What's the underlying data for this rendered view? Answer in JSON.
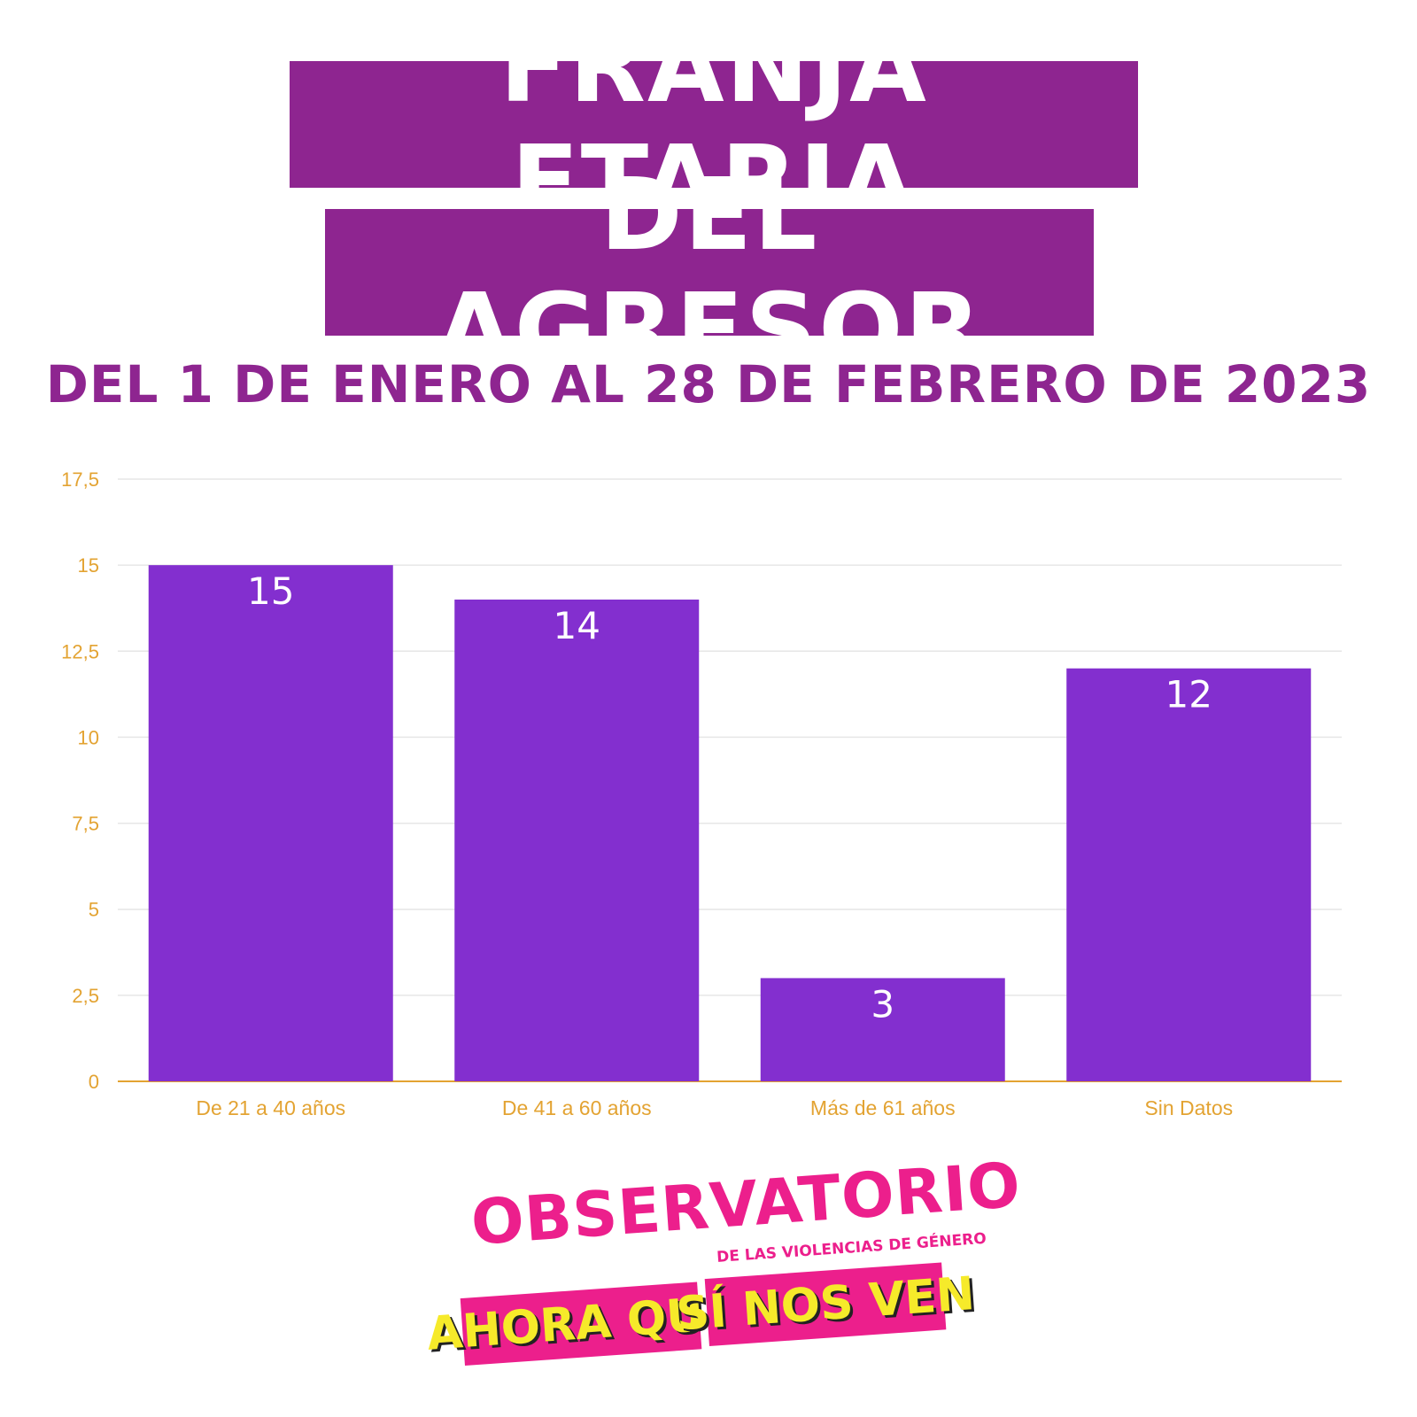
{
  "header": {
    "title_line1": "FRANJA ETARIA",
    "title_line2": "DEL AGRESOR",
    "subtitle": "DEL 1 DE ENERO AL 28 DE FEBRERO DE 2023"
  },
  "colors": {
    "title_bg": "#8e2590",
    "bar": "#832fcf",
    "axis_text": "#e3a332",
    "brand_pink": "#ec1f8c",
    "brand_yellow": "#f6ea2a"
  },
  "chart_data": {
    "type": "bar",
    "categories": [
      "De 21 a 40 años",
      "De 41 a 60 años",
      "Más de 61 años",
      "Sin Datos"
    ],
    "values": [
      15,
      14,
      3,
      12
    ],
    "data_labels": [
      "15",
      "14",
      "3",
      "12"
    ],
    "ylim": [
      0,
      17.5
    ],
    "yticks": [
      0,
      2.5,
      5,
      7.5,
      10,
      12.5,
      15,
      17.5
    ],
    "ytick_labels": [
      "0",
      "2,5",
      "5",
      "7,5",
      "10",
      "12,5",
      "15",
      "17,5"
    ],
    "grid": true,
    "legend": "none"
  },
  "logo": {
    "main": "OBSERVATORIO",
    "sub": "DE LAS VIOLENCIAS DE GÉNERO",
    "band_left": "AHORA QUE",
    "band_right": "SÍ NOS VEN"
  }
}
